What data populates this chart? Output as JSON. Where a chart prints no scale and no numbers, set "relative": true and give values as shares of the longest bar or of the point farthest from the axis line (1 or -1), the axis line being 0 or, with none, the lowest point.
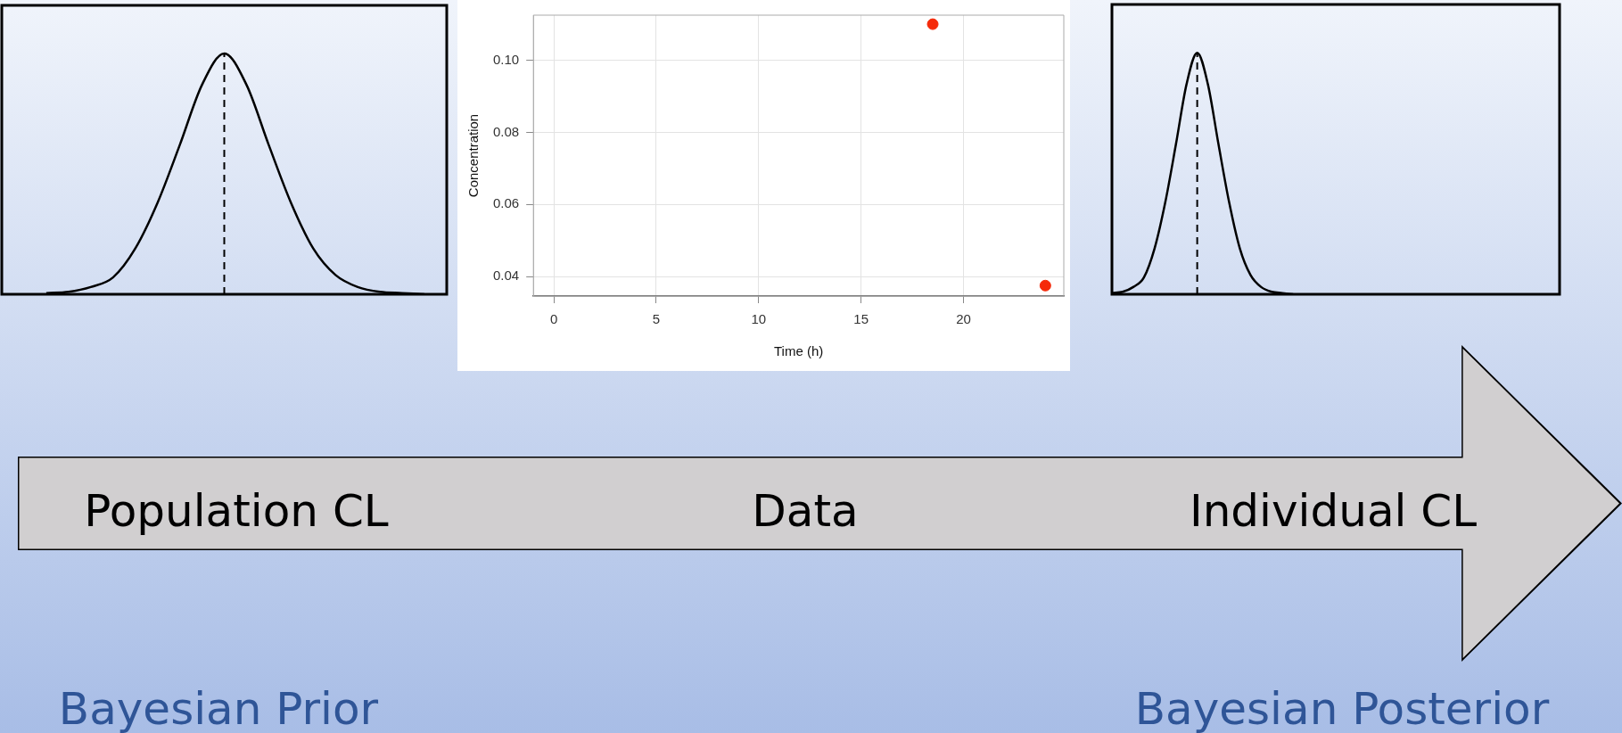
{
  "chart_data": [
    {
      "type": "line",
      "relative": true,
      "tick_labels": false,
      "color": "#000000",
      "marker": "none",
      "categories": [
        null,
        null,
        null,
        null,
        null,
        null,
        null,
        null,
        null,
        null,
        null,
        null,
        null,
        null,
        null,
        null,
        null,
        null,
        null,
        null,
        null
      ],
      "values": [
        null,
        null,
        0.005,
        0.01,
        0.03,
        0.07,
        0.19,
        0.38,
        0.62,
        0.87,
        1,
        0.87,
        0.62,
        0.38,
        0.19,
        0.08,
        0.03,
        0.01,
        0.005,
        0,
        null
      ],
      "annotations": [
        "Population CL",
        "Bayesian Prior"
      ]
    },
    {
      "type": "scatter",
      "xlabel": "Time (h)",
      "ylabel": "Concentration",
      "color": "#f52a0a",
      "marker": "circle",
      "x": [
        18.5,
        24
      ],
      "values": [
        0.11,
        0.0375
      ],
      "xlim": [
        -1,
        24.9
      ],
      "xticks": [
        0,
        5,
        10,
        15,
        20
      ],
      "ylim": [
        0.0346,
        0.1125
      ],
      "yticks": [
        {
          "value": 0.04,
          "label": "0.04"
        },
        {
          "value": 0.06,
          "label": "0.06"
        },
        {
          "value": 0.08,
          "label": "0.08"
        },
        {
          "value": 0.1,
          "label": "0.10"
        }
      ],
      "grid": true,
      "annotations": [
        "Data"
      ]
    },
    {
      "type": "line",
      "relative": true,
      "tick_labels": false,
      "color": "#000000",
      "marker": "none",
      "categories": [
        null,
        null,
        null,
        null,
        null,
        null,
        null,
        null,
        null,
        null,
        null,
        null,
        null,
        null,
        null,
        null,
        null,
        null,
        null,
        null,
        null,
        null,
        null,
        null,
        null,
        null,
        null,
        null,
        null,
        null,
        null,
        null,
        null,
        null,
        null,
        null,
        null,
        null,
        null,
        null,
        null,
        null,
        null
      ],
      "values": [
        0.005,
        0.01,
        0.03,
        0.07,
        0.19,
        0.38,
        0.62,
        0.87,
        1,
        0.87,
        0.62,
        0.38,
        0.19,
        0.08,
        0.03,
        0.01,
        0.005,
        0,
        null,
        null,
        null,
        null,
        null,
        null,
        null,
        null,
        null,
        null,
        null,
        null,
        null,
        null,
        null,
        null,
        null,
        null,
        null,
        null,
        null,
        null,
        null,
        null,
        null
      ],
      "annotations": [
        "Individual CL",
        "Bayesian Posterior"
      ]
    }
  ]
}
